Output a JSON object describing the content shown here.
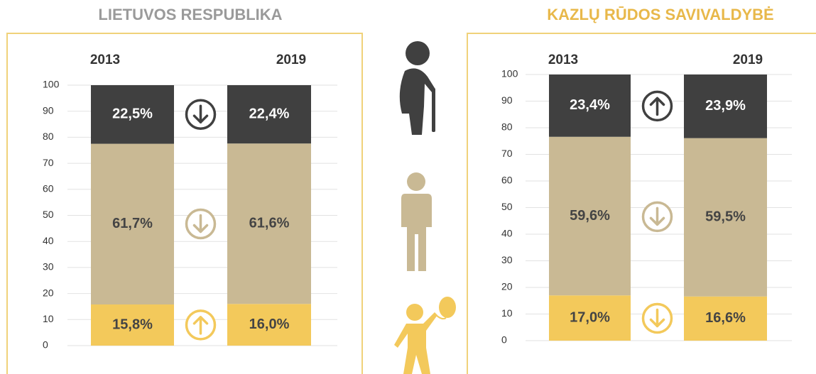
{
  "chart_data": [
    {
      "type": "bar",
      "title": "LIETUVOS RESPUBLIKA",
      "categories": [
        "2013",
        "2019"
      ],
      "series": [
        {
          "color": "#f3c95b",
          "values": [
            15.8,
            16.0
          ],
          "value_labels": [
            "15,8%",
            "16,0%"
          ]
        },
        {
          "color": "#c9b994",
          "values": [
            61.7,
            61.6
          ],
          "value_labels": [
            "61,7%",
            "61,6%"
          ]
        },
        {
          "color": "#404040",
          "values": [
            22.5,
            22.4
          ],
          "value_labels": [
            "22,5%",
            "22,4%"
          ]
        }
      ],
      "ylim": [
        0,
        100
      ],
      "yticks": [
        0,
        10,
        20,
        30,
        40,
        50,
        60,
        70,
        80,
        90,
        100
      ],
      "grid": true
    },
    {
      "type": "bar",
      "title": "KAZLŲ RŪDOS SAVIVALDYBĖ",
      "categories": [
        "2013",
        "2019"
      ],
      "series": [
        {
          "color": "#f3c95b",
          "values": [
            17.0,
            16.6
          ],
          "value_labels": [
            "17,0%",
            "16,6%"
          ]
        },
        {
          "color": "#c9b994",
          "values": [
            59.6,
            59.5
          ],
          "value_labels": [
            "59,6%",
            "59,5%"
          ]
        },
        {
          "color": "#404040",
          "values": [
            23.4,
            23.9
          ],
          "value_labels": [
            "23,4%",
            "23,9%"
          ]
        }
      ],
      "ylim": [
        0,
        100
      ],
      "yticks": [
        0,
        10,
        20,
        30,
        40,
        50,
        60,
        70,
        80,
        90,
        100
      ],
      "grid": true
    }
  ]
}
